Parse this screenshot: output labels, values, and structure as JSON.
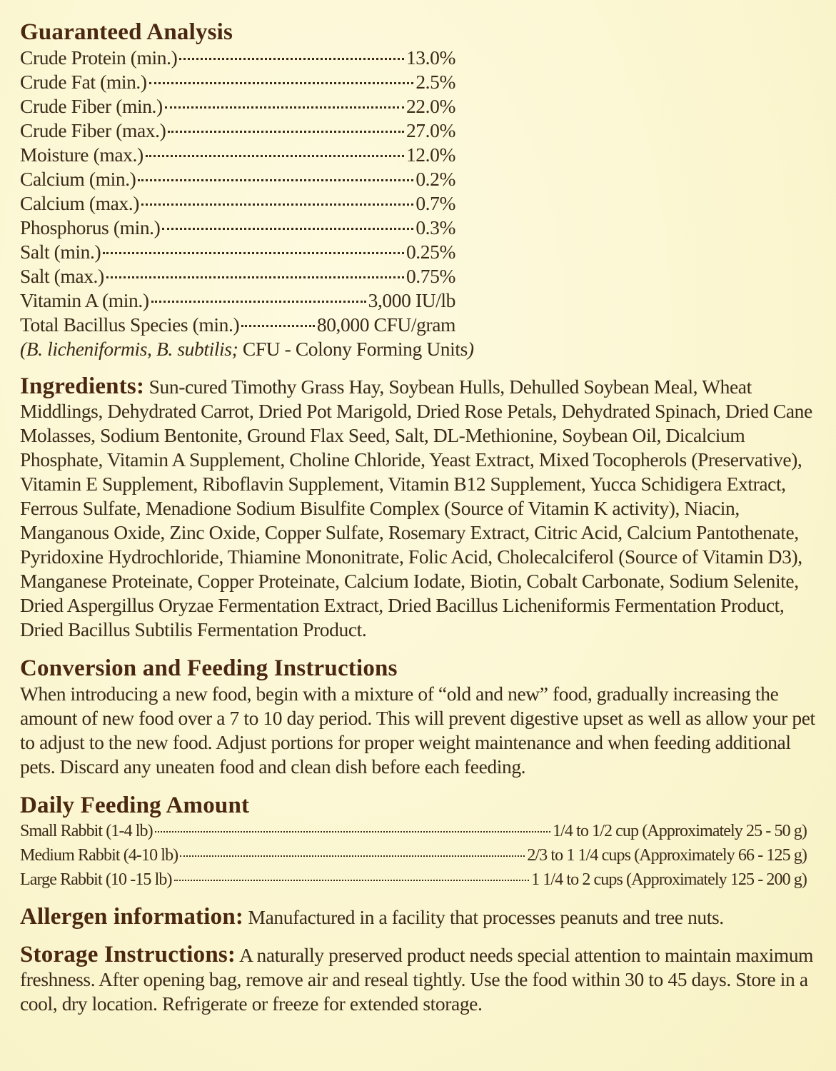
{
  "guaranteed_analysis": {
    "title": "Guaranteed Analysis",
    "rows": [
      {
        "label": "Crude Protein (min.)",
        "value": "13.0%"
      },
      {
        "label": "Crude Fat (min.)",
        "value": "2.5%"
      },
      {
        "label": "Crude Fiber (min.)",
        "value": "22.0%"
      },
      {
        "label": "Crude Fiber (max.)",
        "value": "27.0%"
      },
      {
        "label": "Moisture (max.)",
        "value": "12.0%"
      },
      {
        "label": "Calcium (min.)",
        "value": "0.2%"
      },
      {
        "label": "Calcium (max.)",
        "value": "0.7%"
      },
      {
        "label": "Phosphorus (min.)",
        "value": "0.3%"
      },
      {
        "label": "Salt (min.)",
        "value": "0.25%"
      },
      {
        "label": "Salt (max.)",
        "value": "0.75%"
      },
      {
        "label": "Vitamin A (min.)",
        "value": "3,000 IU/lb"
      },
      {
        "label": "Total Bacillus Species (min.)",
        "value": "80,000 CFU/gram"
      }
    ],
    "note": [
      "(B. licheniformis, B. subtilis;",
      "CFU - Colony Forming Units",
      ")"
    ]
  },
  "ingredients": {
    "heading": "Ingredients:",
    "text": "Sun-cured Timothy Grass Hay, Soybean Hulls, Dehulled Soybean Meal, Wheat Middlings, Dehydrated Carrot, Dried Pot Marigold, Dried Rose Petals, Dehydrated Spinach, Dried Cane Molasses, Sodium Bentonite, Ground Flax Seed, Salt, DL-Methionine, Soybean Oil, Dicalcium Phosphate, Vitamin A Supplement, Choline Chloride, Yeast Extract, Mixed Tocopherols (Preservative), Vitamin E Supplement, Riboflavin Supplement, Vitamin B12 Supplement, Yucca Schidigera Extract, Ferrous Sulfate, Menadione Sodium Bisulfite Complex (Source of Vitamin K activity), Niacin, Manganous Oxide, Zinc Oxide, Copper Sulfate, Rosemary Extract, Citric Acid, Calcium Pantothenate, Pyridoxine Hydrochloride, Thiamine Mononitrate, Folic Acid, Cholecalciferol (Source of Vitamin D3), Manganese Proteinate, Copper Proteinate, Calcium Iodate, Biotin, Cobalt Carbonate, Sodium Selenite, Dried Aspergillus Oryzae Fermentation Extract, Dried Bacillus Licheniformis Fermentation Product, Dried Bacillus Subtilis Fermentation Product."
  },
  "conversion": {
    "title": "Conversion and Feeding Instructions",
    "text": "When introducing a new food, begin with a mixture of “old and new” food, gradually increasing the amount of new food over a 7 to 10 day period. This will prevent digestive upset as well as allow your pet to adjust to the new food. Adjust portions for proper weight maintenance and when feeding additional pets. Discard any uneaten food and clean dish before each feeding."
  },
  "feeding": {
    "title": "Daily Feeding Amount",
    "rows": [
      {
        "label": "Small Rabbit (1-4 lb)",
        "value": "1/4 to 1/2 cup (Approximately 25 - 50 g)"
      },
      {
        "label": "Medium Rabbit (4-10 lb)",
        "value": "2/3 to 1 1/4 cups (Approximately 66 - 125 g)"
      },
      {
        "label": "Large Rabbit (10 -15 lb)",
        "value": "1 1/4 to 2 cups (Approximately 125 - 200 g)"
      }
    ]
  },
  "allergen": {
    "heading": "Allergen information:",
    "text": "Manufactured in a facility that processes peanuts and tree nuts."
  },
  "storage": {
    "heading": "Storage Instructions:",
    "text": "A naturally preserved product needs special attention to maintain maximum freshness. After opening bag, remove air and reseal tightly. Use the food within 30 to 45 days. Store in a cool, dry location. Refrigerate or freeze for extended storage."
  }
}
